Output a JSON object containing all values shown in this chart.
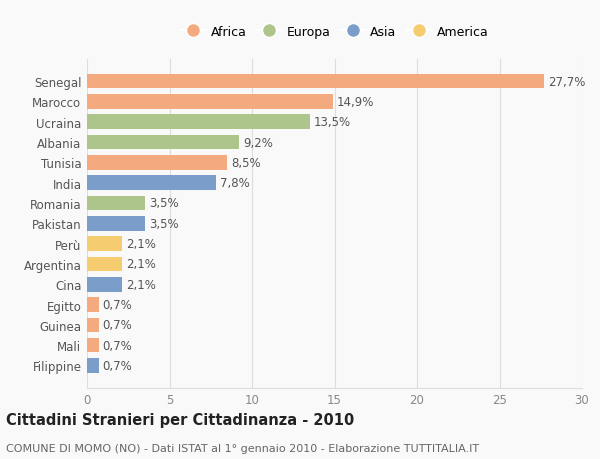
{
  "categories": [
    "Senegal",
    "Marocco",
    "Ucraina",
    "Albania",
    "Tunisia",
    "India",
    "Romania",
    "Pakistan",
    "Perù",
    "Argentina",
    "Cina",
    "Egitto",
    "Guinea",
    "Mali",
    "Filippine"
  ],
  "values": [
    27.7,
    14.9,
    13.5,
    9.2,
    8.5,
    7.8,
    3.5,
    3.5,
    2.1,
    2.1,
    2.1,
    0.7,
    0.7,
    0.7,
    0.7
  ],
  "labels": [
    "27,7%",
    "14,9%",
    "13,5%",
    "9,2%",
    "8,5%",
    "7,8%",
    "3,5%",
    "3,5%",
    "2,1%",
    "2,1%",
    "2,1%",
    "0,7%",
    "0,7%",
    "0,7%",
    "0,7%"
  ],
  "colors": [
    "#f2aa7e",
    "#f2aa7e",
    "#adc48a",
    "#adc48a",
    "#f2aa7e",
    "#7a9dca",
    "#adc48a",
    "#7a9dca",
    "#f5cc70",
    "#f5cc70",
    "#7a9dca",
    "#f2aa7e",
    "#f2aa7e",
    "#f2aa7e",
    "#7a9dca"
  ],
  "legend_labels": [
    "Africa",
    "Europa",
    "Asia",
    "America"
  ],
  "legend_colors": [
    "#f2aa7e",
    "#adc48a",
    "#7a9dca",
    "#f5cc70"
  ],
  "title": "Cittadini Stranieri per Cittadinanza - 2010",
  "subtitle": "COMUNE DI MOMO (NO) - Dati ISTAT al 1° gennaio 2010 - Elaborazione TUTTITALIA.IT",
  "xlim": [
    0,
    30
  ],
  "xticks": [
    0,
    5,
    10,
    15,
    20,
    25,
    30
  ],
  "background_color": "#f9f9f9",
  "grid_color": "#dddddd",
  "bar_height": 0.72,
  "label_fontsize": 8.5,
  "tick_fontsize": 8.5,
  "title_fontsize": 10.5,
  "subtitle_fontsize": 8.0
}
